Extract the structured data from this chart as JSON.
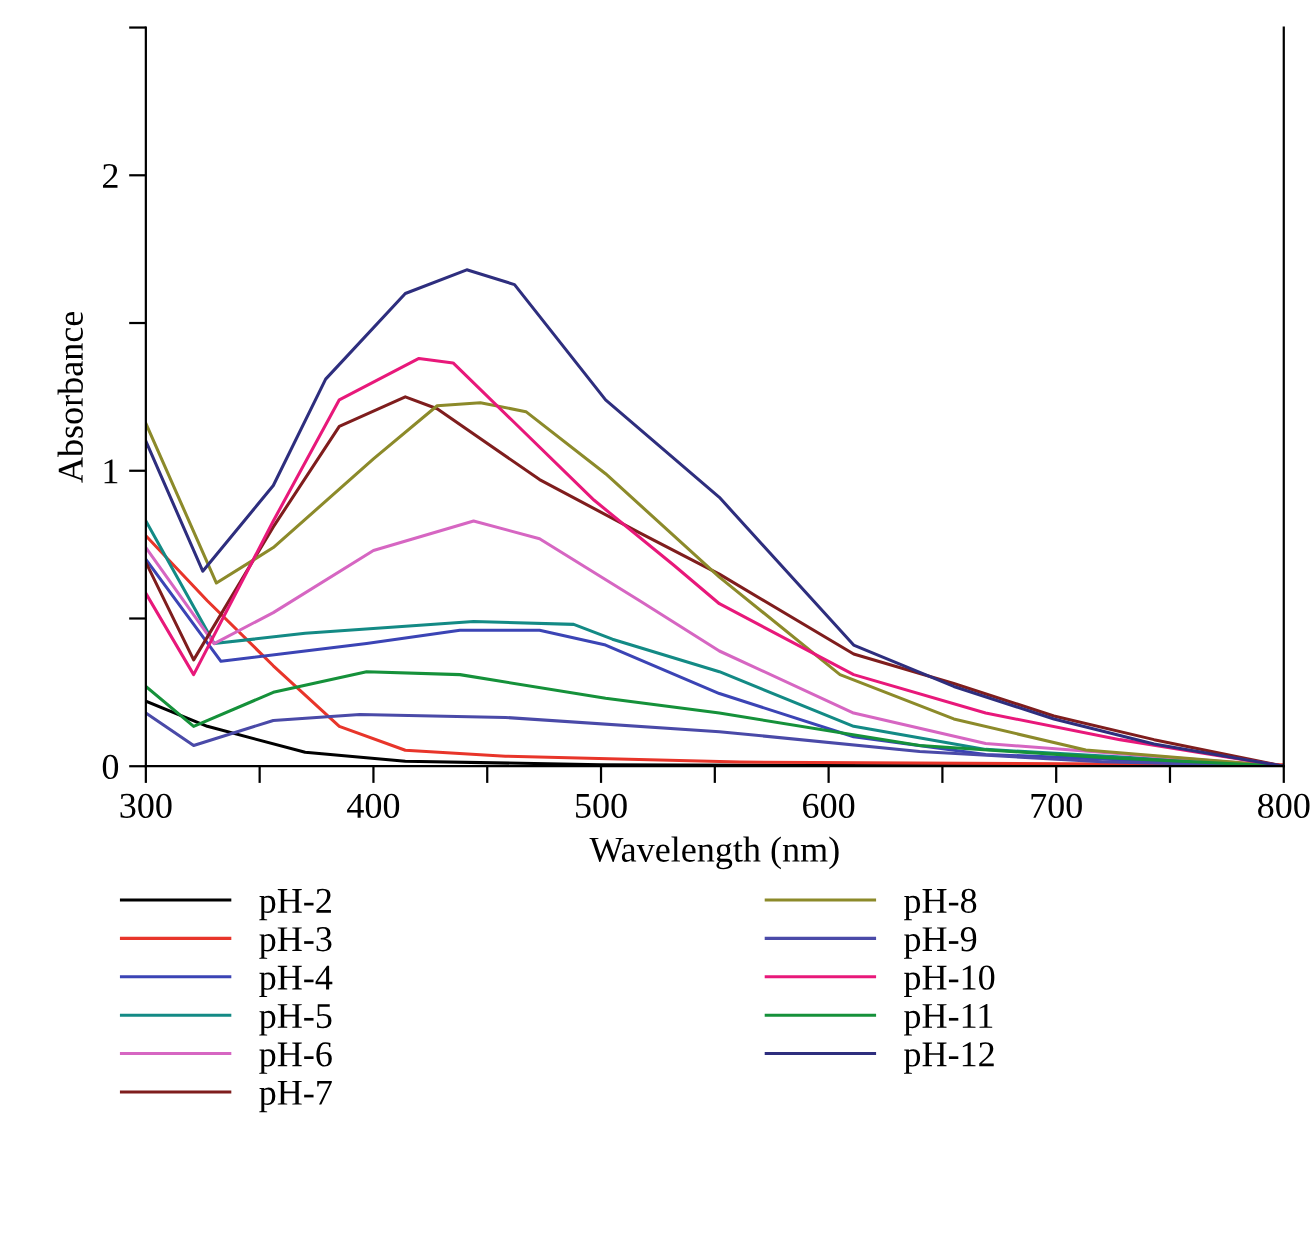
{
  "chart_data": {
    "type": "line",
    "xlabel": "Wavelength (nm)",
    "ylabel": "Absorbance",
    "xlim": [
      300,
      800
    ],
    "ylim": [
      0,
      2.5
    ],
    "xticks": [
      300,
      {
        "value": 350,
        "label": null
      },
      400,
      {
        "value": 450,
        "label": null
      },
      500,
      {
        "value": 550,
        "label": null
      },
      600,
      {
        "value": 650,
        "label": null
      },
      700,
      {
        "value": 750,
        "label": null
      },
      800
    ],
    "yticks": [
      0,
      {
        "value": 0.5,
        "label": null
      },
      1,
      {
        "value": 1.5,
        "label": null
      },
      2,
      {
        "value": 2.5,
        "label": null
      }
    ],
    "grid": false,
    "legend": "bottom",
    "marker": "none",
    "line_style": "solid",
    "series": [
      {
        "name": "pH-2",
        "color": "#000000",
        "x": [
          300,
          327,
          370,
          414,
          500,
          600,
          700,
          800
        ],
        "values": [
          0.22,
          0.135,
          0.047,
          0.017,
          0.005,
          0.002,
          0.001,
          0.0
        ]
      },
      {
        "name": "pH-3",
        "color": "#e8352a",
        "x": [
          300,
          327,
          356,
          385,
          414,
          458,
          561,
          800
        ],
        "values": [
          0.78,
          0.56,
          0.34,
          0.135,
          0.054,
          0.034,
          0.014,
          0.005
        ]
      },
      {
        "name": "pH-4",
        "color": "#3b44b5",
        "x": [
          300,
          333,
          370,
          397,
          438,
          473,
          502,
          552,
          611,
          669,
          800
        ],
        "values": [
          0.7,
          0.355,
          0.39,
          0.415,
          0.46,
          0.46,
          0.41,
          0.246,
          0.1,
          0.04,
          0.0
        ]
      },
      {
        "name": "pH-5",
        "color": "#138a85",
        "x": [
          300,
          330,
          370,
          444,
          488,
          505,
          552,
          611,
          669,
          800
        ],
        "values": [
          0.83,
          0.415,
          0.45,
          0.49,
          0.48,
          0.43,
          0.32,
          0.135,
          0.057,
          0.0
        ]
      },
      {
        "name": "pH-6",
        "color": "#d666c2",
        "x": [
          300,
          330,
          356,
          400,
          444,
          473,
          517,
          552,
          611,
          669,
          800
        ],
        "values": [
          0.74,
          0.415,
          0.52,
          0.73,
          0.83,
          0.77,
          0.56,
          0.39,
          0.18,
          0.077,
          0.0
        ]
      },
      {
        "name": "pH-7",
        "color": "#7f1d1d",
        "x": [
          300,
          321,
          356,
          385,
          414,
          428,
          473,
          517,
          552,
          611,
          655,
          699,
          743,
          800
        ],
        "values": [
          0.69,
          0.36,
          0.81,
          1.15,
          1.25,
          1.21,
          0.97,
          0.79,
          0.65,
          0.38,
          0.28,
          0.17,
          0.09,
          0.0
        ]
      },
      {
        "name": "pH-8",
        "color": "#8c8a2a",
        "x": [
          300,
          331,
          356,
          400,
          428,
          447,
          467,
          502,
          552,
          605,
          655,
          713,
          800
        ],
        "values": [
          1.16,
          0.62,
          0.74,
          1.04,
          1.22,
          1.23,
          1.2,
          0.99,
          0.64,
          0.31,
          0.16,
          0.055,
          0.0
        ]
      },
      {
        "name": "pH-9",
        "color": "#4a4aa8",
        "x": [
          300,
          321,
          356,
          394,
          458,
          552,
          640,
          720,
          800
        ],
        "values": [
          0.18,
          0.07,
          0.155,
          0.175,
          0.165,
          0.117,
          0.05,
          0.015,
          0.0
        ]
      },
      {
        "name": "pH-10",
        "color": "#e8187a",
        "x": [
          300,
          321,
          356,
          385,
          420,
          435,
          461,
          497,
          532,
          552,
          611,
          669,
          728,
          800
        ],
        "values": [
          0.585,
          0.31,
          0.83,
          1.24,
          1.38,
          1.365,
          1.17,
          0.9,
          0.68,
          0.55,
          0.31,
          0.18,
          0.09,
          0.0
        ]
      },
      {
        "name": "pH-11",
        "color": "#15913a",
        "x": [
          300,
          321,
          356,
          397,
          438,
          502,
          552,
          640,
          720,
          800
        ],
        "values": [
          0.27,
          0.135,
          0.25,
          0.32,
          0.31,
          0.23,
          0.18,
          0.07,
          0.03,
          0.0
        ]
      },
      {
        "name": "pH-12",
        "color": "#2e2e7e",
        "x": [
          300,
          325,
          356,
          379,
          414,
          441,
          462,
          502,
          552,
          611,
          655,
          699,
          743,
          800
        ],
        "values": [
          1.1,
          0.66,
          0.95,
          1.31,
          1.6,
          1.68,
          1.63,
          1.24,
          0.91,
          0.41,
          0.27,
          0.16,
          0.075,
          0.0
        ]
      }
    ]
  }
}
